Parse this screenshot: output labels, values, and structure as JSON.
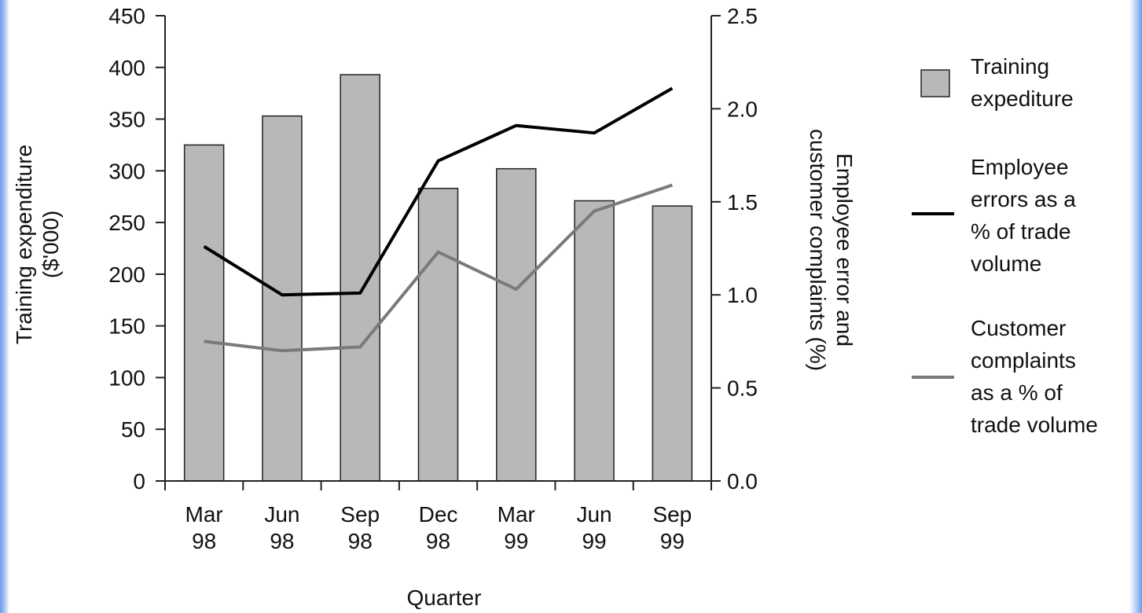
{
  "chart_data": {
    "type": "bar",
    "categories": [
      [
        "Mar",
        "98"
      ],
      [
        "Jun",
        "98"
      ],
      [
        "Sep",
        "98"
      ],
      [
        "Dec",
        "98"
      ],
      [
        "Mar",
        "99"
      ],
      [
        "Jun",
        "99"
      ],
      [
        "Sep",
        "99"
      ]
    ],
    "xlabel": "Quarter",
    "ylabel_left": [
      "Training expenditure",
      "($'000)"
    ],
    "ylabel_right": [
      "Employee error and",
      "customer complaints (%)"
    ],
    "ylim_left": [
      0,
      450
    ],
    "yticks_left": [
      0,
      50,
      100,
      150,
      200,
      250,
      300,
      350,
      400,
      450
    ],
    "ylim_right": [
      0,
      2.5
    ],
    "yticks_right": [
      "0.0",
      "0.5",
      "1.0",
      "1.5",
      "2.0",
      "2.5"
    ],
    "grid": false,
    "legend_position": "right",
    "series": [
      {
        "name": [
          "Training",
          "expediture"
        ],
        "kind": "bar",
        "axis": "left",
        "color": "#b8b8b8",
        "values": [
          325,
          353,
          393,
          283,
          302,
          271,
          266
        ]
      },
      {
        "name": [
          "Employee",
          "errors as a",
          "% of trade",
          "volume"
        ],
        "kind": "line",
        "axis": "right",
        "color": "#000000",
        "values": [
          1.26,
          1.0,
          1.01,
          1.72,
          1.91,
          1.87,
          2.11
        ]
      },
      {
        "name": [
          "Customer",
          "complaints",
          "as a % of",
          "trade volume"
        ],
        "kind": "line",
        "axis": "right",
        "color": "#7a7a7a",
        "values": [
          0.75,
          0.7,
          0.72,
          1.23,
          1.03,
          1.45,
          1.59
        ]
      }
    ]
  }
}
